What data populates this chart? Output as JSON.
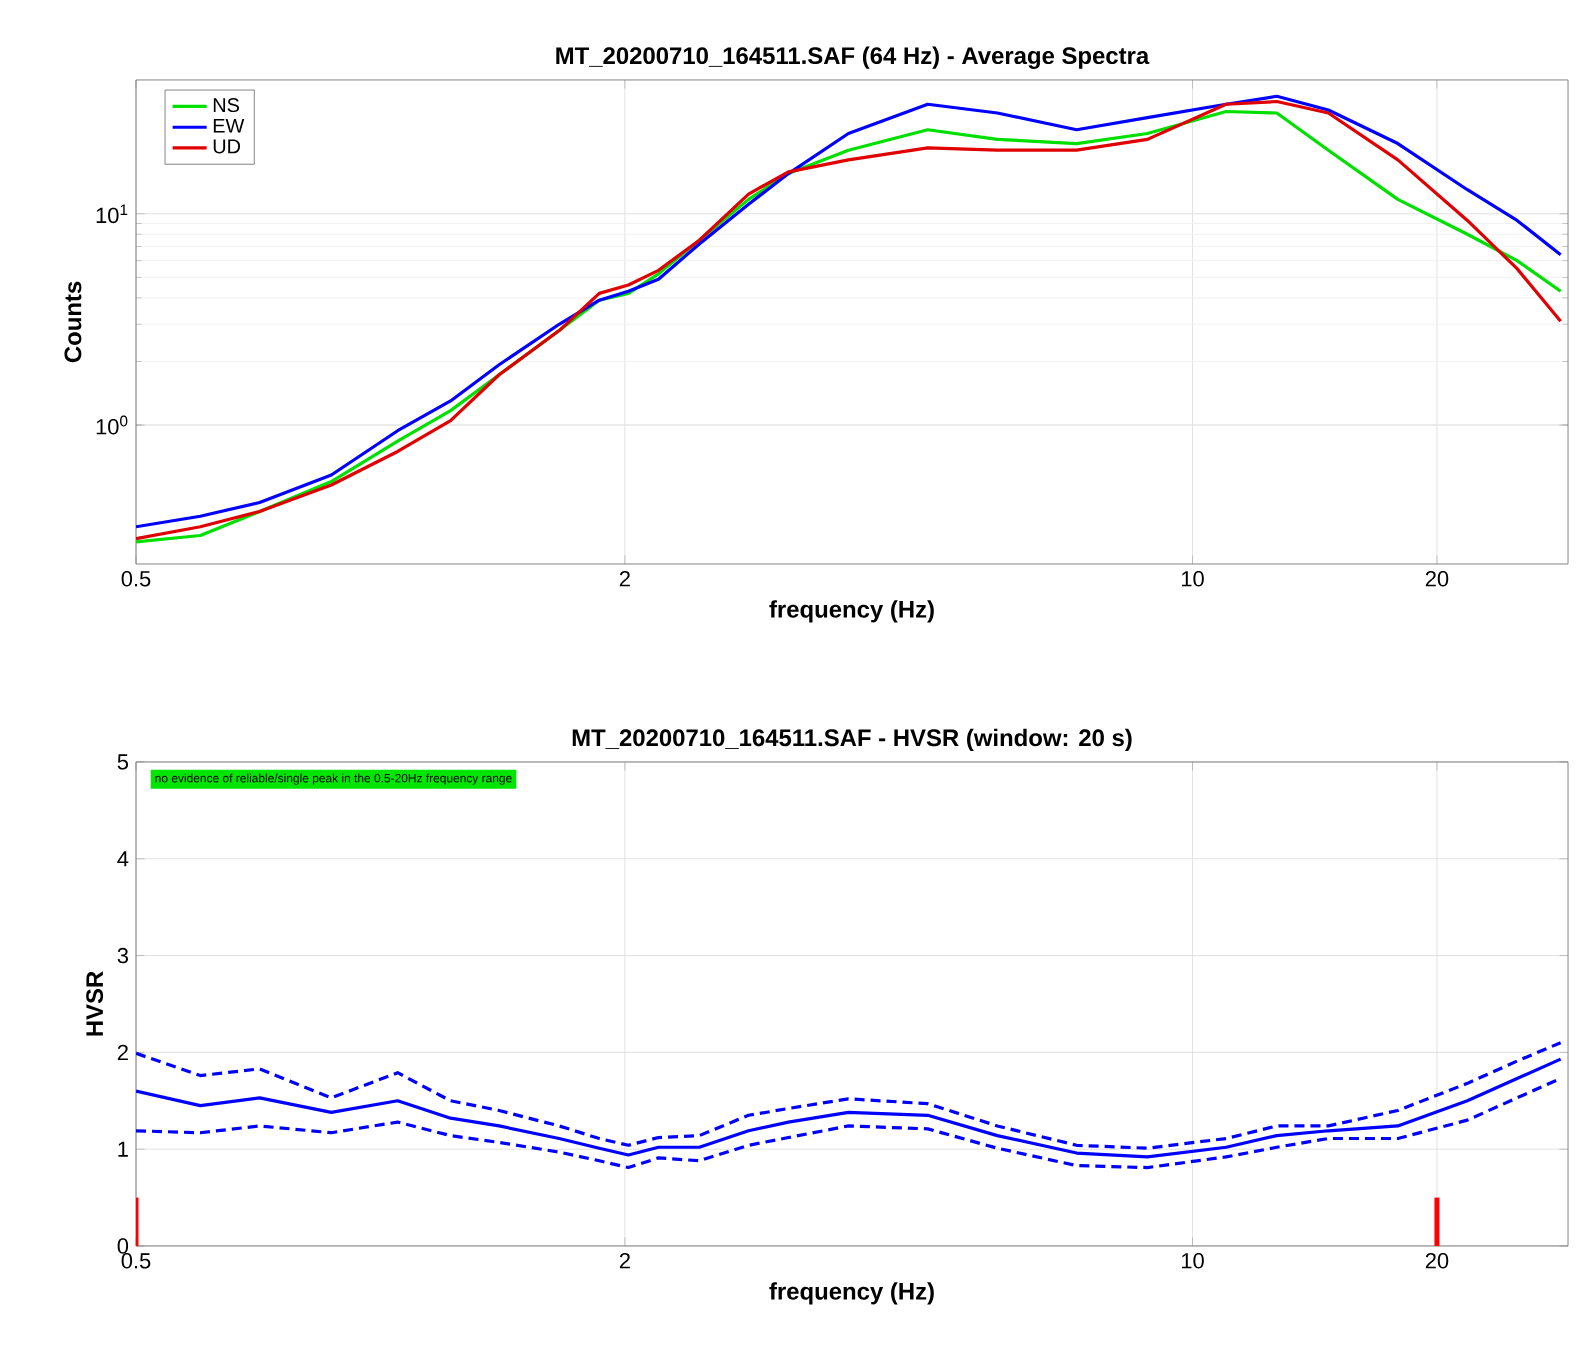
{
  "chart_data": [
    {
      "type": "line",
      "title": "MT_20200710_164511.SAF (64 Hz) - Average Spectra",
      "xlabel": "frequency (Hz)",
      "ylabel": "Counts",
      "x": [
        0.5,
        0.6,
        0.71,
        0.87,
        1.05,
        1.22,
        1.4,
        1.66,
        1.86,
        2.02,
        2.2,
        2.47,
        2.84,
        3.18,
        3.77,
        4.72,
        5.75,
        7.2,
        8.8,
        11.0,
        12.7,
        14.7,
        17.9,
        21.8,
        25.1,
        28.4
      ],
      "series": [
        {
          "name": "NS",
          "color": "#00e000",
          "values": [
            0.28,
            0.3,
            0.39,
            0.54,
            0.84,
            1.17,
            1.73,
            2.8,
            3.9,
            4.2,
            5.2,
            7.5,
            11.7,
            15.5,
            20,
            25,
            22.5,
            21.5,
            24,
            30.5,
            30,
            20,
            11.7,
            8,
            6,
            4.3
          ]
        },
        {
          "name": "EW",
          "color": "#0000ff",
          "values": [
            0.33,
            0.37,
            0.43,
            0.58,
            0.94,
            1.3,
            1.93,
            3.0,
            3.9,
            4.3,
            4.9,
            7.2,
            11.1,
            15.5,
            24,
            33,
            30,
            25,
            28.5,
            33,
            36,
            31,
            21.5,
            13,
            9.3,
            6.4
          ]
        },
        {
          "name": "UD",
          "color": "#e00000",
          "values": [
            0.29,
            0.33,
            0.39,
            0.52,
            0.75,
            1.05,
            1.73,
            2.8,
            4.2,
            4.6,
            5.4,
            7.5,
            12.4,
            15.8,
            18,
            20.5,
            20,
            20,
            22.5,
            33,
            34,
            30,
            18,
            9.3,
            5.5,
            3.1
          ]
        }
      ],
      "xlim": [
        0.5,
        29
      ],
      "ylim": [
        0.22,
        43
      ],
      "xticks": [
        0.5,
        2,
        10,
        20
      ],
      "yticks": [
        {
          "value": 1,
          "label": "10$^{0}$"
        },
        {
          "value": 10,
          "label": "10$^{1}$"
        }
      ],
      "log": "xy",
      "grid": true,
      "legend": "top left"
    },
    {
      "type": "line",
      "title": "MT_20200710_164511.SAF - HVSR (window: 20 s)",
      "xlabel": "frequency (Hz)",
      "ylabel": "HVSR",
      "x": [
        0.5,
        0.6,
        0.71,
        0.87,
        1.05,
        1.22,
        1.4,
        1.66,
        1.86,
        2.02,
        2.2,
        2.47,
        2.84,
        3.18,
        3.77,
        4.72,
        5.75,
        7.2,
        8.8,
        11.0,
        12.7,
        14.7,
        17.9,
        21.8,
        25.1,
        28.4
      ],
      "series": [
        {
          "color": "#0000ff",
          "line_style": "solid",
          "values": [
            1.6,
            1.45,
            1.53,
            1.38,
            1.5,
            1.32,
            1.24,
            1.11,
            1.01,
            0.94,
            1.02,
            1.02,
            1.19,
            1.28,
            1.38,
            1.35,
            1.14,
            0.96,
            0.92,
            1.02,
            1.14,
            1.19,
            1.24,
            1.5,
            1.73,
            1.93
          ]
        },
        {
          "color": "#0000ff",
          "line_style": "dashed",
          "values": [
            1.99,
            1.76,
            1.83,
            1.53,
            1.79,
            1.5,
            1.4,
            1.24,
            1.11,
            1.04,
            1.12,
            1.14,
            1.35,
            1.42,
            1.52,
            1.47,
            1.24,
            1.04,
            1.01,
            1.11,
            1.24,
            1.24,
            1.4,
            1.68,
            1.91,
            2.1
          ]
        },
        {
          "color": "#0000ff",
          "line_style": "dashed",
          "values": [
            1.19,
            1.17,
            1.24,
            1.17,
            1.28,
            1.14,
            1.07,
            0.97,
            0.88,
            0.81,
            0.91,
            0.88,
            1.04,
            1.12,
            1.24,
            1.21,
            1.01,
            0.83,
            0.81,
            0.92,
            1.02,
            1.11,
            1.11,
            1.3,
            1.53,
            1.73
          ]
        },
        {
          "type": "bar",
          "color": "#ff0000",
          "x": [
            0.5,
            20
          ],
          "values": [
            0.5,
            0.5
          ]
        }
      ],
      "xlim": [
        0.5,
        29
      ],
      "ylim": [
        0,
        5
      ],
      "xticks": [
        0.5,
        2,
        10,
        20
      ],
      "yticks": [
        0,
        1,
        2,
        3,
        4,
        5
      ],
      "log": "x",
      "grid": true,
      "annotations": [
        "no evidence of reliable/single peak in the 0.5-20Hz frequency range"
      ]
    }
  ]
}
